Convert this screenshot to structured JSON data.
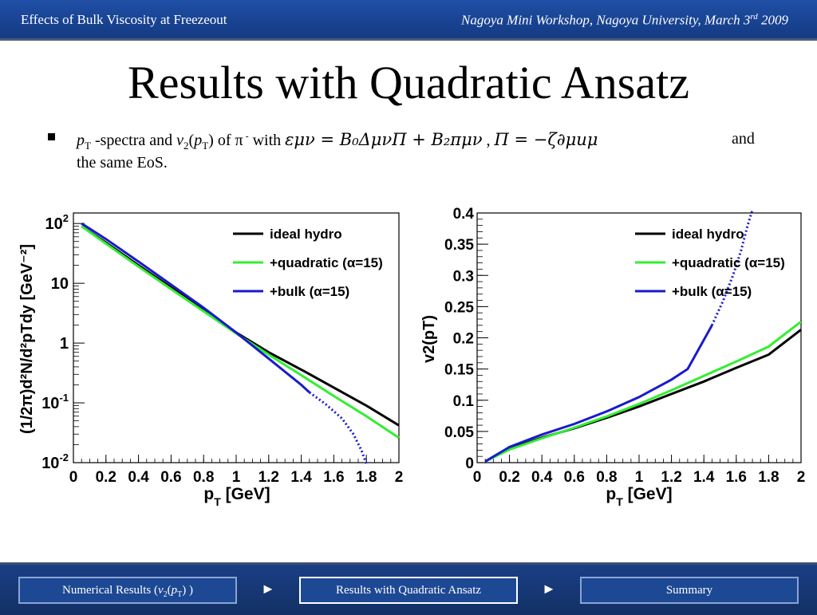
{
  "header": {
    "left": "Effects of Bulk Viscosity at Freezeout",
    "right_prefix": "Nagoya Mini Workshop, Nagoya University, March 3",
    "right_sup": "rd",
    "right_suffix": " 2009"
  },
  "slide": {
    "title": "Results with Quadratic Ansatz",
    "bullet": {
      "pt": "p",
      "pt_sub": "T",
      "text_a": " -spectra and ",
      "v2": "v",
      "v2_sub": "2",
      "paren_open": "(",
      "pt2": "p",
      "pt2_sub": "T",
      "paren_close": ")",
      "text_b": " of π",
      "pion_sup": " -",
      "text_c": " with ",
      "formula1": "εμν = B₀ΔμνΠ + B₂πμν",
      "comma": " , ",
      "formula2": "Π = −ζ∂μuμ",
      "text_and": "and",
      "line2": "the same EoS."
    }
  },
  "chart_data": [
    {
      "type": "line",
      "ylog": true,
      "ylabel": "(1/2π)d²N/d²pTdy [GeV⁻²]",
      "xlabel": "pT [GeV]",
      "xlim": [
        0,
        2
      ],
      "ylim": [
        0.01,
        150
      ],
      "xticks": [
        "0",
        "0.2",
        "0.4",
        "0.6",
        "0.8",
        "1",
        "1.2",
        "1.4",
        "1.6",
        "1.8",
        "2"
      ],
      "yticks": [
        {
          "base": "10",
          "exp": "-2",
          "value": 0.01
        },
        {
          "base": "10",
          "exp": "-1",
          "value": 0.1
        },
        {
          "base": "1",
          "exp": "",
          "value": 1
        },
        {
          "base": "10",
          "exp": "",
          "value": 10
        },
        {
          "base": "10",
          "exp": "2",
          "value": 100
        }
      ],
      "legend": [
        "ideal hydro",
        "+quadratic (α=15)",
        "+bulk (α=15)"
      ],
      "colors": [
        "#000000",
        "#33ee33",
        "#1a1acc"
      ],
      "series": [
        {
          "name": "ideal hydro",
          "x": [
            0.05,
            0.2,
            0.4,
            0.6,
            0.8,
            1.0,
            1.2,
            1.4,
            1.6,
            1.8,
            2.0
          ],
          "y": [
            90,
            48,
            20,
            8.5,
            3.6,
            1.5,
            0.7,
            0.36,
            0.18,
            0.09,
            0.042
          ]
        },
        {
          "name": "+quadratic (α=15)",
          "x": [
            0.05,
            0.2,
            0.4,
            0.6,
            0.8,
            1.0,
            1.2,
            1.4,
            1.6,
            1.8,
            2.0
          ],
          "y": [
            90,
            46,
            19,
            8.0,
            3.4,
            1.45,
            0.64,
            0.29,
            0.13,
            0.06,
            0.026
          ]
        },
        {
          "name": "+bulk (α=15)",
          "x": [
            0.05,
            0.2,
            0.4,
            0.6,
            0.8,
            1.0,
            1.2,
            1.4,
            1.45
          ],
          "y": [
            100,
            55,
            23,
            9.5,
            3.9,
            1.5,
            0.55,
            0.2,
            0.15
          ],
          "dotted_x": [
            1.45,
            1.55,
            1.65,
            1.72,
            1.77,
            1.8
          ],
          "dotted_y": [
            0.15,
            0.095,
            0.055,
            0.03,
            0.016,
            0.0095
          ]
        }
      ]
    },
    {
      "type": "line",
      "ylabel": "v2(pT)",
      "xlabel": "pT [GeV]",
      "xlim": [
        0,
        2
      ],
      "ylim": [
        0,
        0.4
      ],
      "xticks": [
        "0",
        "0.2",
        "0.4",
        "0.6",
        "0.8",
        "1",
        "1.2",
        "1.4",
        "1.6",
        "1.8",
        "2"
      ],
      "yticks": [
        "0",
        "0.05",
        "0.1",
        "0.15",
        "0.2",
        "0.25",
        "0.3",
        "0.35",
        "0.4"
      ],
      "legend": [
        "ideal hydro",
        "+quadratic (α=15)",
        "+bulk (α=15)"
      ],
      "colors": [
        "#000000",
        "#33ee33",
        "#1a1acc"
      ],
      "series": [
        {
          "name": "ideal hydro",
          "x": [
            0.05,
            0.2,
            0.4,
            0.6,
            0.8,
            1.0,
            1.2,
            1.4,
            1.6,
            1.8,
            2.0
          ],
          "y": [
            0.002,
            0.022,
            0.04,
            0.055,
            0.072,
            0.09,
            0.11,
            0.13,
            0.152,
            0.173,
            0.213
          ]
        },
        {
          "name": "+quadratic (α=15)",
          "x": [
            0.05,
            0.2,
            0.4,
            0.6,
            0.8,
            1.0,
            1.2,
            1.4,
            1.6,
            1.8,
            2.0
          ],
          "y": [
            0.002,
            0.021,
            0.039,
            0.056,
            0.074,
            0.094,
            0.116,
            0.139,
            0.162,
            0.186,
            0.226
          ]
        },
        {
          "name": "+bulk (α=15)",
          "x": [
            0.05,
            0.2,
            0.4,
            0.6,
            0.8,
            1.0,
            1.2,
            1.3,
            1.45
          ],
          "y": [
            0.002,
            0.025,
            0.045,
            0.062,
            0.082,
            0.105,
            0.133,
            0.15,
            0.22
          ],
          "dotted_x": [
            1.45,
            1.52,
            1.58,
            1.63,
            1.67,
            1.7
          ],
          "dotted_y": [
            0.22,
            0.26,
            0.3,
            0.34,
            0.38,
            0.405
          ]
        }
      ]
    }
  ],
  "nav": {
    "btn1_prefix": "Numerical Results (",
    "btn1_v": "v",
    "btn1_sub": "2",
    "btn1_paren": "(",
    "btn1_pt": "p",
    "btn1_ptsub": "T",
    "btn1_suffix": ") )",
    "arrow": "►",
    "btn2": "Results with Quadratic Ansatz",
    "btn3": "Summary"
  }
}
